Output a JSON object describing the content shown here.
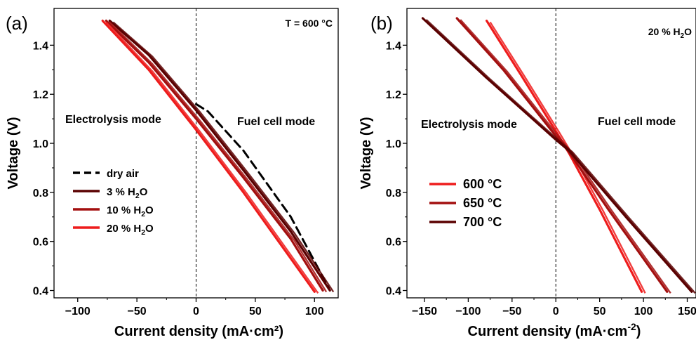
{
  "chart_data": [
    {
      "panel": "(a)",
      "type": "line",
      "corner_label": "T = 600 °C",
      "xlabel": "Current density (mA·cm²)",
      "ylabel": "Voltage (V)",
      "xlim": [
        -120,
        120
      ],
      "ylim": [
        0.37,
        1.55
      ],
      "xticks": [
        -100,
        -50,
        0,
        50,
        100
      ],
      "yticks": [
        0.4,
        0.6,
        0.8,
        1.0,
        1.2,
        1.4
      ],
      "annotations": [
        "Electrolysis mode",
        "Fuel cell mode"
      ],
      "legend_position": "lower-left",
      "zero_line": "dashed",
      "series": [
        {
          "name": "dry air",
          "color": "#000000",
          "dash": true,
          "points": [
            [
              0,
              1.16
            ],
            [
              10,
              1.13
            ],
            [
              40,
              0.97
            ],
            [
              80,
              0.7
            ],
            [
              112,
              0.41
            ]
          ]
        },
        {
          "name": "3 % H",
          "sub": "2",
          "name_suffix": "O",
          "color": "#5a0000",
          "points": [
            [
              -73,
              1.5
            ],
            [
              -40,
              1.36
            ],
            [
              0,
              1.135
            ],
            [
              40,
              0.89
            ],
            [
              80,
              0.64
            ],
            [
              113,
              0.4
            ]
          ]
        },
        {
          "name": "10 % H",
          "sub": "2",
          "name_suffix": "O",
          "color": "#a30f0f",
          "points": [
            [
              -76,
              1.5
            ],
            [
              -40,
              1.33
            ],
            [
              0,
              1.1
            ],
            [
              40,
              0.86
            ],
            [
              80,
              0.61
            ],
            [
              107,
              0.4
            ]
          ]
        },
        {
          "name": "20 % H",
          "sub": "2",
          "name_suffix": "O",
          "color": "#ee1c1c",
          "points": [
            [
              -79,
              1.5
            ],
            [
              -40,
              1.3
            ],
            [
              0,
              1.055
            ],
            [
              40,
              0.8
            ],
            [
              80,
              0.53
            ],
            [
              100,
              0.395
            ]
          ]
        }
      ]
    },
    {
      "panel": "(b)",
      "type": "line",
      "corner_label": "20 % H",
      "corner_sub": "2",
      "corner_suffix": "O",
      "xlabel": "Current density (mA·cm",
      "xlabel_sup": "-2",
      "xlabel_suffix": ")",
      "ylabel": "Voltage (V)",
      "xlim": [
        -170,
        160
      ],
      "ylim": [
        0.37,
        1.55
      ],
      "xticks": [
        -150,
        -100,
        -50,
        0,
        50,
        100,
        150
      ],
      "yticks": [
        0.4,
        0.6,
        0.8,
        1.0,
        1.2,
        1.4
      ],
      "annotations": [
        "Electrolysis mode",
        "Fuel cell mode"
      ],
      "legend_position": "lower-left",
      "zero_line": "dashed",
      "series": [
        {
          "name": "600 °C",
          "color": "#ee1c1c",
          "points": [
            [
              -79,
              1.5
            ],
            [
              -40,
              1.28
            ],
            [
              0,
              1.05
            ],
            [
              15,
              0.96
            ],
            [
              50,
              0.73
            ],
            [
              98,
              0.395
            ]
          ]
        },
        {
          "name": "650 °C",
          "color": "#a30f0f",
          "points": [
            [
              -113,
              1.51
            ],
            [
              -60,
              1.3
            ],
            [
              0,
              1.03
            ],
            [
              15,
              0.965
            ],
            [
              60,
              0.73
            ],
            [
              127,
              0.395
            ]
          ]
        },
        {
          "name": "700 °C",
          "color": "#5a0000",
          "points": [
            [
              -152,
              1.51
            ],
            [
              -80,
              1.27
            ],
            [
              0,
              1.015
            ],
            [
              15,
              0.97
            ],
            [
              80,
              0.7
            ],
            [
              155,
              0.395
            ]
          ]
        }
      ]
    }
  ]
}
